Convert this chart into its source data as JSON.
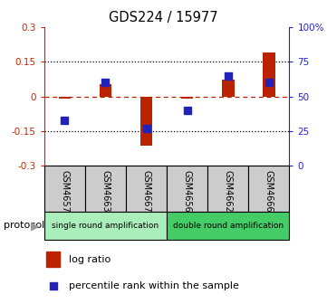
{
  "title": "GDS224 / 15977",
  "samples": [
    "GSM4657",
    "GSM4663",
    "GSM4667",
    "GSM4656",
    "GSM4662",
    "GSM4666"
  ],
  "log_ratio": [
    -0.01,
    0.055,
    -0.215,
    -0.01,
    0.075,
    0.19
  ],
  "percentile_rank": [
    33,
    60,
    27,
    40,
    65,
    60
  ],
  "ylim_left": [
    -0.3,
    0.3
  ],
  "ylim_right": [
    0,
    100
  ],
  "yticks_left": [
    -0.3,
    -0.15,
    0.0,
    0.15,
    0.3
  ],
  "yticks_right": [
    0,
    25,
    50,
    75,
    100
  ],
  "ytick_labels_left": [
    "-0.3",
    "-0.15",
    "0",
    "0.15",
    "0.3"
  ],
  "ytick_labels_right": [
    "0",
    "25",
    "50",
    "75",
    "100%"
  ],
  "hlines_dotted": [
    0.15,
    -0.15
  ],
  "hline_dashed": 0.0,
  "protocol_groups": [
    {
      "label": "single round amplification",
      "start": 0,
      "end": 3,
      "color": "#AAEEBB"
    },
    {
      "label": "double round amplification",
      "start": 3,
      "end": 6,
      "color": "#44CC66"
    }
  ],
  "bar_color": "#BB2200",
  "dot_color": "#2222BB",
  "bar_width": 0.3,
  "dot_size": 35,
  "left_color": "#CC2200",
  "right_color": "#2222CC",
  "sample_cell_color": "#CCCCCC",
  "legend_log_ratio": "log ratio",
  "legend_percentile": "percentile rank within the sample",
  "protocol_label": "protocol"
}
